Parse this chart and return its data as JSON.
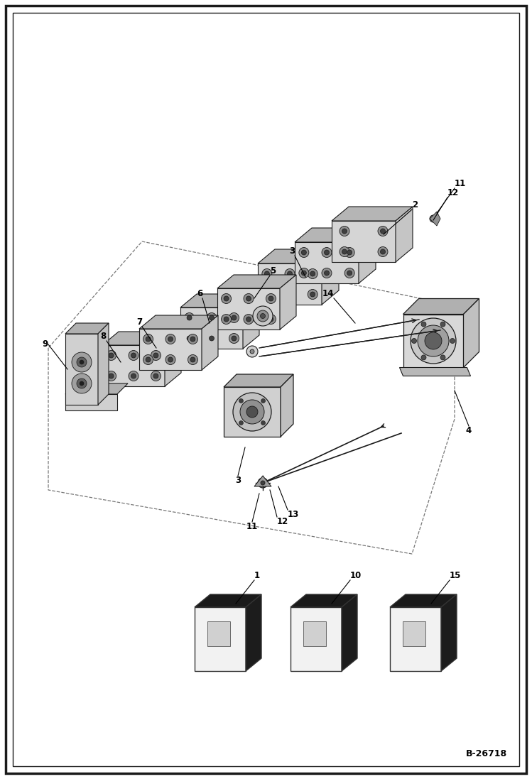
{
  "figure_width": 7.49,
  "figure_height": 10.97,
  "dpi": 100,
  "background_color": "#ffffff",
  "border_color": "#000000",
  "border_linewidth": 2.0,
  "reference_code": "B-26718",
  "component_color": "#1a1a1a",
  "line_color": "#000000",
  "label_fontsize": 8.5,
  "label_fontweight": "bold",
  "face_light": "#e8e8e8",
  "face_mid": "#c0c0c0",
  "face_dark": "#888888",
  "face_very_dark": "#383838",
  "face_top": "#b0b0b0",
  "face_right": "#c8c8c8"
}
